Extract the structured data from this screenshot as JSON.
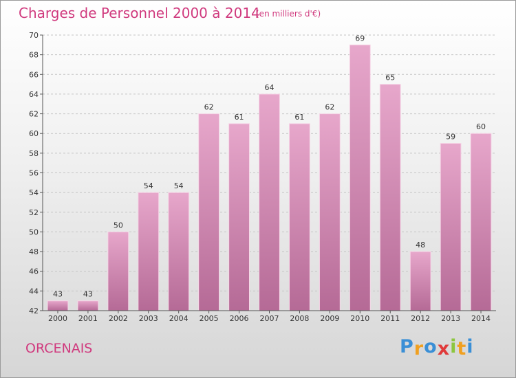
{
  "chart_data": {
    "type": "bar",
    "title": "Charges de Personnel 2000 à 2014",
    "subtitle": "(en milliers d'€)",
    "categories": [
      "2000",
      "2001",
      "2002",
      "2003",
      "2004",
      "2005",
      "2006",
      "2007",
      "2008",
      "2009",
      "2010",
      "2011",
      "2012",
      "2013",
      "2014"
    ],
    "values": [
      43,
      43,
      50,
      54,
      54,
      62,
      61,
      64,
      61,
      62,
      69,
      65,
      48,
      59,
      60
    ],
    "ylim": [
      42,
      70
    ],
    "yticks": [
      42,
      44,
      46,
      48,
      50,
      52,
      54,
      56,
      58,
      60,
      62,
      64,
      66,
      68,
      70
    ],
    "grid": true,
    "xlabel": "",
    "ylabel": "",
    "bar_color": "#d489b4",
    "text_color": "#d03a7e"
  },
  "commune": "ORCENAIS",
  "logo": {
    "letters": [
      "P",
      "r",
      "o",
      "x",
      "i",
      "t",
      "i"
    ],
    "colors": [
      "#3a8fd6",
      "#f0a020",
      "#3a8fd6",
      "#e03a3a",
      "#8cc63f",
      "#f0a020",
      "#3a8fd6"
    ]
  }
}
